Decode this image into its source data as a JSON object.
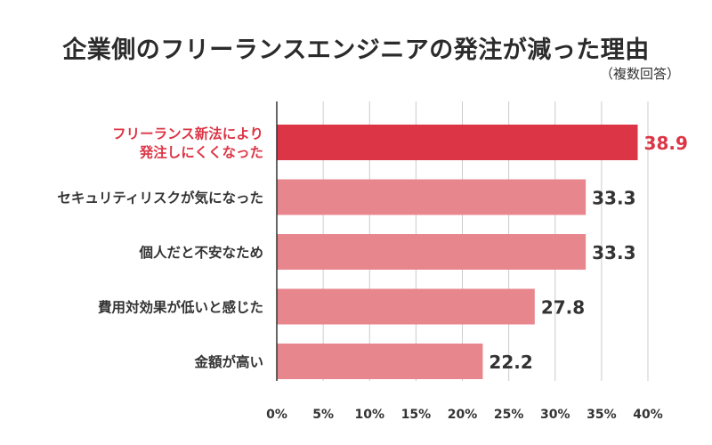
{
  "chart_data": {
    "type": "bar",
    "orientation": "horizontal",
    "title": "企業側のフリーランスエンジニアの発注が減った理由",
    "subtitle": "（複数回答）",
    "categories": [
      [
        "フリーランス新法により",
        "発注しにくくなった"
      ],
      [
        "セキュリティリスクが気になった"
      ],
      [
        "個人だと不安なため"
      ],
      [
        "費用対効果が低いと感じた"
      ],
      [
        "金額が高い"
      ]
    ],
    "values": [
      38.9,
      33.3,
      33.3,
      27.8,
      22.2
    ],
    "highlight_index": 0,
    "xlim": [
      0,
      40
    ],
    "xticks": [
      "0%",
      "5%",
      "10%",
      "15%",
      "20%",
      "25%",
      "30%",
      "35%",
      "40%"
    ],
    "grid": true,
    "colors": {
      "highlight": "#dc3545",
      "bar": "#e8868e",
      "grid": "#cccccc",
      "axis": "#333333"
    }
  }
}
